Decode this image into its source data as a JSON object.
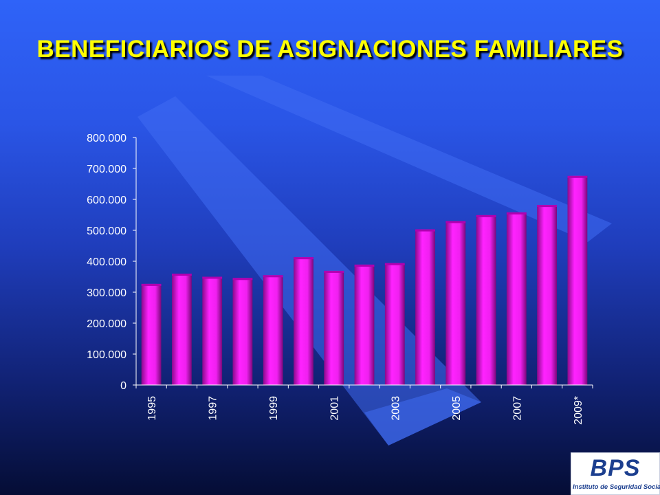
{
  "slide": {
    "title": "BENEFICIARIOS DE ASIGNACIONES FAMILIARES"
  },
  "logo": {
    "mark": "BPS",
    "subtitle": "Instituto de Seguridad Social"
  },
  "colors": {
    "bar": "#e010e0",
    "title": "#ffff00",
    "axis": "#ffffff"
  },
  "chart_data": {
    "type": "bar",
    "title": "",
    "xlabel": "",
    "ylabel": "",
    "categories": [
      "1995",
      "1996",
      "1997",
      "1998",
      "1999",
      "2000",
      "2001",
      "2002",
      "2003",
      "2004",
      "2005",
      "2006",
      "2007",
      "2008",
      "2009*"
    ],
    "x_tick_labels": [
      "1995",
      "1997",
      "1999",
      "2001",
      "2003",
      "2005",
      "2007",
      "2009*"
    ],
    "values": [
      327000,
      360000,
      350000,
      346000,
      355000,
      413000,
      369000,
      389000,
      394000,
      503000,
      530000,
      549000,
      558000,
      582000,
      676000
    ],
    "ylim": [
      0,
      800000
    ],
    "y_ticks": [
      0,
      100000,
      200000,
      300000,
      400000,
      500000,
      600000,
      700000,
      800000
    ],
    "y_tick_labels": [
      "0",
      "100.000",
      "200.000",
      "300.000",
      "400.000",
      "500.000",
      "600.000",
      "700.000",
      "800.000"
    ],
    "grid": false,
    "legend": "none"
  }
}
